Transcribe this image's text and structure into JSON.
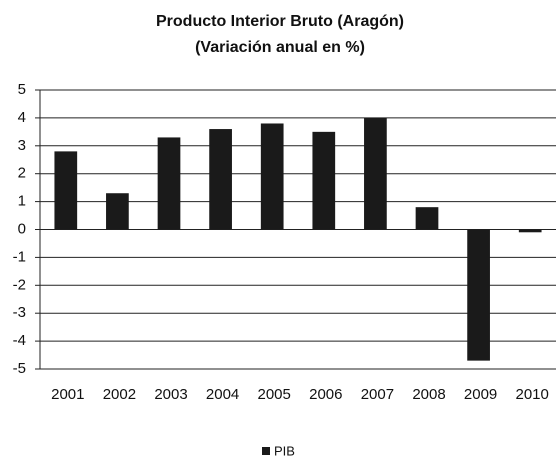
{
  "chart_data": {
    "type": "bar",
    "title": "Producto Interior Bruto (Aragón)",
    "subtitle": "(Variación anual en %)",
    "categories": [
      "2001",
      "2002",
      "2003",
      "2004",
      "2005",
      "2006",
      "2007",
      "2008",
      "2009",
      "2010"
    ],
    "series": [
      {
        "name": "PIB",
        "color": "#1a1a1a",
        "values": [
          2.8,
          1.3,
          3.3,
          3.6,
          3.8,
          3.5,
          4.0,
          0.8,
          -4.7,
          -0.1
        ]
      }
    ],
    "ylim": [
      -5,
      5
    ],
    "yticks": [
      -5,
      -4,
      -3,
      -2,
      -1,
      0,
      1,
      2,
      3,
      4,
      5
    ],
    "grid": true
  }
}
